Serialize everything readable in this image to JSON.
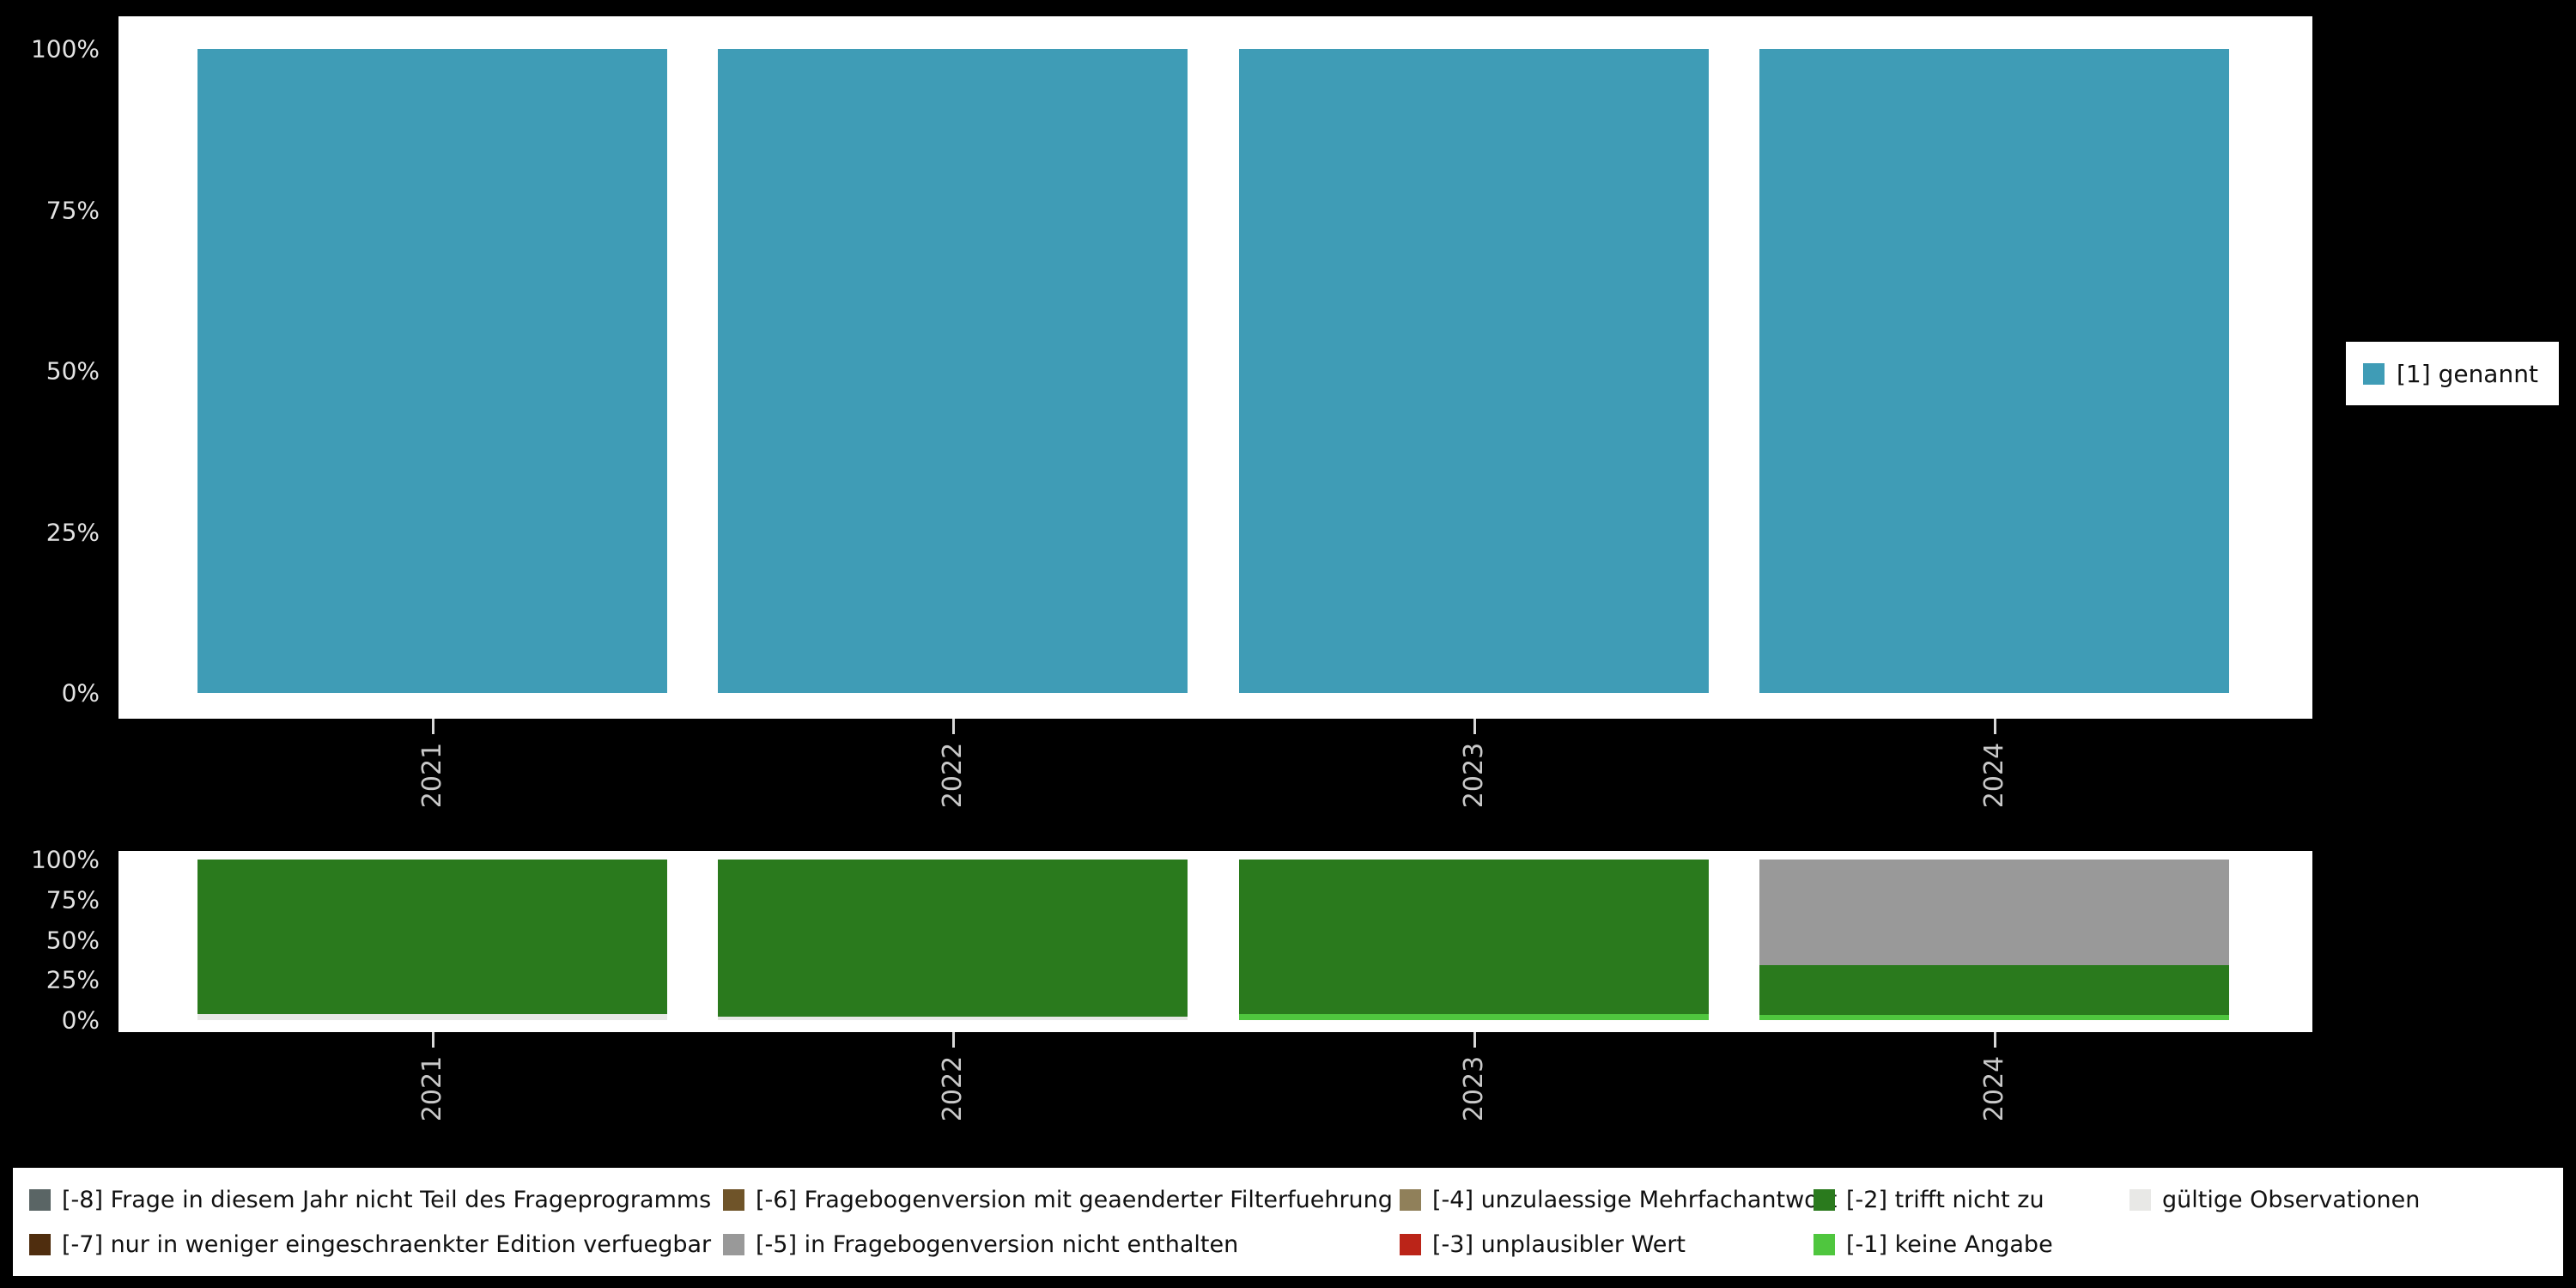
{
  "colors": {
    "background": "#000000",
    "panel": "#ffffff",
    "axis_text": "#e3e3e3",
    "year_text": "#c9c9c9"
  },
  "chart_data": [
    {
      "type": "bar",
      "stacked": true,
      "title": "",
      "categories": [
        "2021",
        "2022",
        "2023",
        "2024"
      ],
      "series": [
        {
          "name": "[1] genannt",
          "color": "#3f9cb6",
          "values": [
            100,
            100,
            100,
            100
          ]
        }
      ],
      "ylim": [
        0,
        100
      ],
      "ytick_labels": [
        "0%",
        "25%",
        "50%",
        "75%",
        "100%"
      ],
      "legend_position": "right",
      "grid": false
    },
    {
      "type": "bar",
      "stacked": true,
      "title": "",
      "categories": [
        "2021",
        "2022",
        "2023",
        "2024"
      ],
      "series": [
        {
          "name": "gültige Observationen",
          "color": "#e8e8e6",
          "values": [
            4,
            2,
            0,
            0
          ]
        },
        {
          "name": "[-1] keine Angabe",
          "color": "#4fc63e",
          "values": [
            0,
            0,
            4,
            3
          ]
        },
        {
          "name": "[-2] trifft nicht zu",
          "color": "#2a7a1d",
          "values": [
            96,
            98,
            96,
            31
          ]
        },
        {
          "name": "[-5] in Fragebogenversion nicht enthalten",
          "color": "#999999",
          "values": [
            0,
            0,
            0,
            66
          ]
        }
      ],
      "ylim": [
        0,
        100
      ],
      "ytick_labels": [
        "0%",
        "25%",
        "50%",
        "75%",
        "100%"
      ],
      "legend_position": "bottom",
      "grid": false
    }
  ],
  "top_legend": {
    "items": [
      {
        "label": "[1] genannt",
        "color": "#3f9cb6"
      }
    ]
  },
  "bottom_legend": {
    "rows": [
      [
        {
          "label": "[-8] Frage in diesem Jahr nicht Teil des Frageprogramms",
          "color": "#5a6565"
        },
        {
          "label": "[-6] Fragebogenversion mit geaenderter Filterfuehrung",
          "color": "#6f5429"
        },
        {
          "label": "[-4] unzulaessige Mehrfachantwort",
          "color": "#90805a"
        },
        {
          "label": "[-2] trifft nicht zu",
          "color": "#2a7a1d"
        },
        {
          "label": "gültige Observationen",
          "color": "#e8e8e6"
        }
      ],
      [
        {
          "label": "[-7] nur in weniger eingeschraenkter Edition verfuegbar",
          "color": "#4f2d0e"
        },
        {
          "label": "[-5] in Fragebogenversion nicht enthalten",
          "color": "#999999"
        },
        {
          "label": "[-3] unplausibler Wert",
          "color": "#bb2418"
        },
        {
          "label": "[-1] keine Angabe",
          "color": "#4fc63e"
        }
      ]
    ]
  }
}
